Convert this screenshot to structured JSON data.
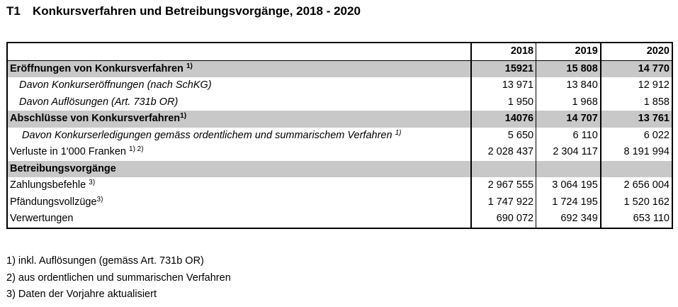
{
  "title": {
    "number": "T1",
    "text": "Konkursverfahren und Betreibungsvorgänge, 2018 - 2020"
  },
  "table": {
    "years": [
      "2018",
      "2019",
      "2020"
    ],
    "rows": [
      {
        "label": "Eröffnungen von Konkursverfahren",
        "note": "1)",
        "values": [
          "15921",
          "15 808",
          "14 770"
        ]
      },
      {
        "label": "Davon Konkurseröffnungen (nach SchKG)",
        "note": "",
        "values": [
          "13 971",
          "13 840",
          "12 912"
        ]
      },
      {
        "label": "Davon Auflösungen (Art. 731b OR)",
        "note": "",
        "values": [
          "1 950",
          "1 968",
          "1 858"
        ]
      },
      {
        "label": "Abschlüsse von Konkursverfahren",
        "note": "1)",
        "values": [
          "14076",
          "14 707",
          "13 761"
        ]
      },
      {
        "label": "Davon Konkurserledigungen gemäss ordentlichem und summarischem Verfahren",
        "note": "1)",
        "values": [
          "5 650",
          "6 110",
          "6 022"
        ]
      },
      {
        "label": "Verluste in 1'000 Franken",
        "note": "1) 2)",
        "values": [
          "2 028 437",
          "2 304 117",
          "8 191 994"
        ]
      },
      {
        "label": "Betreibungsvorgänge",
        "note": "",
        "values": [
          "",
          "",
          ""
        ]
      },
      {
        "label": "Zahlungsbefehle",
        "note": "3)",
        "values": [
          "2 967 555",
          "3 064 195",
          "2 656 004"
        ]
      },
      {
        "label": "Pfändungsvollzüge",
        "note": "3)",
        "values": [
          "1 747 922",
          "1 724 195",
          "1 520 162"
        ]
      },
      {
        "label": "Verwertungen",
        "note": "",
        "values": [
          "690 072",
          "692 349",
          "653 110"
        ]
      }
    ]
  },
  "footnotes": [
    "1) inkl. Auflösungen (gemäss Art. 731b OR)",
    "2) aus ordentlichen und summarischen Verfahren",
    "3) Daten der Vorjahre aktualisiert"
  ]
}
